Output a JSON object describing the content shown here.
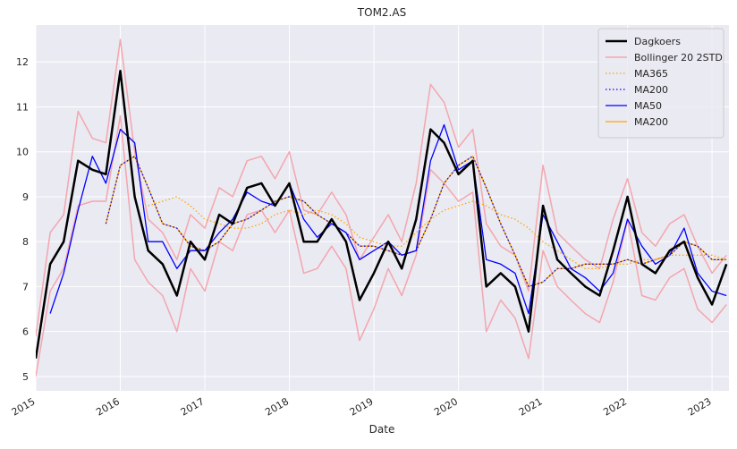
{
  "chart_data": {
    "type": "line",
    "title": "TOM2.AS",
    "x_label": "Date",
    "x": [
      2015.0,
      2015.17,
      2015.33,
      2015.5,
      2015.67,
      2015.83,
      2016.0,
      2016.17,
      2016.33,
      2016.5,
      2016.67,
      2016.83,
      2017.0,
      2017.17,
      2017.33,
      2017.5,
      2017.67,
      2017.83,
      2018.0,
      2018.17,
      2018.33,
      2018.5,
      2018.67,
      2018.83,
      2019.0,
      2019.17,
      2019.33,
      2019.5,
      2019.67,
      2019.83,
      2020.0,
      2020.17,
      2020.33,
      2020.5,
      2020.67,
      2020.83,
      2021.0,
      2021.17,
      2021.33,
      2021.5,
      2021.67,
      2021.83,
      2022.0,
      2022.17,
      2022.33,
      2022.5,
      2022.67,
      2022.83,
      2023.0,
      2023.17
    ],
    "series": [
      {
        "name": "Dagkoers",
        "color": "#000000",
        "width": 2.5,
        "dash": "solid",
        "values": [
          5.4,
          7.5,
          8.0,
          9.8,
          9.6,
          9.5,
          11.8,
          9.0,
          7.8,
          7.5,
          6.8,
          8.0,
          7.6,
          8.6,
          8.4,
          9.2,
          9.3,
          8.8,
          9.3,
          8.0,
          8.0,
          8.5,
          8.0,
          6.7,
          7.3,
          8.0,
          7.4,
          8.5,
          10.5,
          10.2,
          9.5,
          9.8,
          7.0,
          7.3,
          7.0,
          6.0,
          8.8,
          7.6,
          7.3,
          7.0,
          6.8,
          7.8,
          9.0,
          7.5,
          7.3,
          7.8,
          8.0,
          7.2,
          6.6,
          7.5
        ]
      },
      {
        "name": "Bollinger 20 2STD",
        "color": "#f4a6ad",
        "width": 1.5,
        "dash": "solid",
        "values": [
          5.9,
          8.2,
          8.6,
          10.9,
          10.3,
          10.2,
          12.5,
          10.0,
          8.5,
          8.2,
          7.6,
          8.6,
          8.3,
          9.2,
          9.0,
          9.8,
          9.9,
          9.4,
          10.0,
          8.7,
          8.6,
          9.1,
          8.6,
          7.6,
          8.1,
          8.6,
          8.0,
          9.3,
          11.5,
          11.1,
          10.1,
          10.5,
          8.4,
          7.9,
          7.7,
          6.9,
          9.7,
          8.2,
          7.9,
          7.6,
          7.4,
          8.5,
          9.4,
          8.2,
          7.9,
          8.4,
          8.6,
          7.9,
          7.3,
          7.7
        ],
        "lower": [
          5.0,
          6.9,
          7.4,
          8.8,
          8.9,
          8.9,
          10.8,
          7.6,
          7.1,
          6.8,
          6.0,
          7.4,
          6.9,
          8.0,
          7.8,
          8.6,
          8.7,
          8.2,
          8.7,
          7.3,
          7.4,
          7.9,
          7.4,
          5.8,
          6.5,
          7.4,
          6.8,
          7.7,
          9.6,
          9.3,
          8.9,
          9.1,
          6.0,
          6.7,
          6.3,
          5.4,
          7.8,
          7.0,
          6.7,
          6.4,
          6.2,
          7.1,
          8.5,
          6.8,
          6.7,
          7.2,
          7.4,
          6.5,
          6.2,
          6.6
        ]
      },
      {
        "name": "MA365",
        "color": "#ffa500",
        "width": 1.3,
        "dash": "dotted",
        "values": [
          null,
          null,
          null,
          null,
          null,
          null,
          null,
          null,
          8.8,
          8.9,
          9.0,
          8.8,
          8.5,
          8.4,
          8.3,
          8.3,
          8.4,
          8.6,
          8.7,
          8.6,
          8.7,
          8.6,
          8.4,
          8.1,
          8.0,
          7.9,
          7.9,
          8.2,
          8.5,
          8.7,
          8.8,
          8.9,
          8.8,
          8.6,
          8.5,
          8.3,
          8.0,
          7.8,
          7.6,
          7.4,
          7.4,
          7.5,
          7.5,
          7.6,
          7.6,
          7.7,
          7.7,
          7.7,
          7.7,
          7.6
        ]
      },
      {
        "name": "MA200",
        "color": "#0000ff",
        "width": 1.3,
        "dash": "dotted",
        "values": [
          null,
          null,
          null,
          null,
          null,
          8.4,
          9.7,
          9.9,
          9.2,
          8.4,
          8.3,
          7.9,
          7.8,
          8.0,
          8.4,
          8.5,
          8.7,
          8.9,
          9.0,
          8.9,
          8.6,
          8.4,
          8.2,
          7.9,
          7.9,
          7.8,
          7.7,
          7.8,
          8.5,
          9.3,
          9.7,
          9.9,
          9.2,
          8.4,
          7.7,
          7.0,
          7.1,
          7.4,
          7.4,
          7.5,
          7.5,
          7.5,
          7.6,
          7.5,
          7.6,
          7.7,
          8.0,
          7.9,
          7.6,
          7.6
        ]
      },
      {
        "name": "MA50",
        "color": "#0000ff",
        "width": 1.3,
        "dash": "solid",
        "values": [
          null,
          6.4,
          7.3,
          8.7,
          9.9,
          9.3,
          10.5,
          10.2,
          8.0,
          8.0,
          7.4,
          7.8,
          7.8,
          8.2,
          8.5,
          9.1,
          8.9,
          8.8,
          9.3,
          8.5,
          8.1,
          8.4,
          8.2,
          7.6,
          7.8,
          8.0,
          7.7,
          7.8,
          9.8,
          10.6,
          9.6,
          9.8,
          7.6,
          7.5,
          7.3,
          6.4,
          8.6,
          8.0,
          7.4,
          7.2,
          6.9,
          7.3,
          8.5,
          7.9,
          7.5,
          7.7,
          8.3,
          7.3,
          6.9,
          6.8
        ]
      },
      {
        "name": "MA200",
        "color": "#ffa500",
        "width": 1.3,
        "dash": "solid",
        "values": [
          null,
          null,
          null,
          null,
          null,
          8.4,
          9.7,
          9.9,
          9.2,
          8.4,
          8.3,
          7.9,
          7.8,
          8.0,
          8.4,
          8.5,
          8.7,
          8.9,
          9.0,
          8.9,
          8.6,
          8.4,
          8.2,
          7.9,
          7.9,
          7.8,
          7.7,
          7.8,
          8.5,
          9.3,
          9.7,
          9.9,
          9.2,
          8.4,
          7.7,
          7.0,
          7.1,
          7.4,
          7.4,
          7.5,
          7.5,
          7.5,
          7.6,
          7.5,
          7.6,
          7.7,
          8.0,
          7.9,
          7.6,
          7.6
        ]
      }
    ],
    "xlim": [
      2015,
      2023.2
    ],
    "xticks": [
      2015,
      2016,
      2017,
      2018,
      2019,
      2020,
      2021,
      2022,
      2023
    ],
    "ylim": [
      4.68,
      12.82
    ],
    "yticks": [
      5,
      6,
      7,
      8,
      9,
      10,
      11,
      12
    ],
    "grid": true,
    "legend": "upper right",
    "background": "#eaeaf2"
  }
}
